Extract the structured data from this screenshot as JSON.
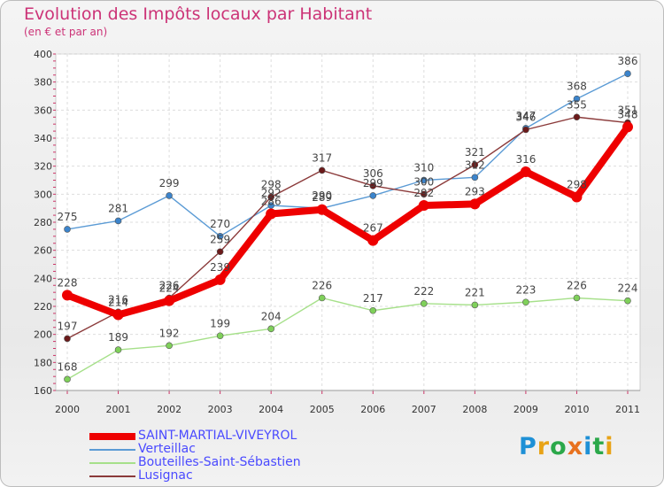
{
  "header": {
    "title": "Evolution des Impôts locaux par Habitant",
    "subtitle": "(en € et par an)"
  },
  "logo": {
    "letters": [
      "P",
      "r",
      "o",
      "x",
      "i",
      "t",
      "i"
    ],
    "colors": [
      "#1e90d6",
      "#e8a317",
      "#2ba84a",
      "#e8711e",
      "#1e90d6",
      "#2ba84a",
      "#e8a317"
    ]
  },
  "chart_data": {
    "type": "line",
    "x": [
      "2000",
      "2001",
      "2002",
      "2003",
      "2004",
      "2005",
      "2006",
      "2007",
      "2008",
      "2009",
      "2010",
      "2011"
    ],
    "ylim": [
      160,
      400
    ],
    "yticks": [
      "160",
      "180",
      "200",
      "220",
      "240",
      "260",
      "280",
      "300",
      "320",
      "340",
      "360",
      "380",
      "400"
    ],
    "grid": true,
    "legend_placement": "bottom-left",
    "series": [
      {
        "name": "Verteillac",
        "color": "#5b9bd5",
        "marker": "#3b84cc",
        "values": [
          275,
          281,
          299,
          270,
          292,
          290,
          299,
          310,
          312,
          347,
          368,
          386
        ],
        "labels": [
          "275",
          "281",
          "299",
          "270",
          "292",
          "290",
          "299",
          "310",
          "312",
          "347",
          "368",
          "386"
        ]
      },
      {
        "name": "Bouteilles-Saint-Sébastien",
        "color": "#a6e08a",
        "marker": "#7fd05a",
        "values": [
          168,
          189,
          192,
          199,
          204,
          226,
          217,
          222,
          221,
          223,
          226,
          224
        ],
        "labels": [
          "168",
          "189",
          "192",
          "199",
          "204",
          "226",
          "217",
          "222",
          "221",
          "223",
          "226",
          "224"
        ]
      },
      {
        "name": "Lusignac",
        "color": "#8b3a3a",
        "marker": "#6b1a1a",
        "values": [
          197,
          216,
          226,
          259,
          298,
          317,
          306,
          300,
          321,
          346,
          355,
          351
        ],
        "labels": [
          "197",
          "216",
          "226",
          "259",
          "298",
          "317",
          "306",
          "300",
          "321",
          "346",
          "355",
          "351"
        ]
      },
      {
        "name": "SAINT-MARTIAL-VIVEYROL",
        "color": "#ee0000",
        "marker": "#ee0000",
        "values": [
          228,
          214,
          224,
          239,
          286,
          289,
          267,
          292,
          293,
          316,
          298,
          348
        ],
        "labels": [
          "228",
          "214",
          "224",
          "239",
          "286",
          "289",
          "267",
          "292",
          "293",
          "316",
          "298",
          "348"
        ]
      }
    ],
    "legend": [
      {
        "name": "SAINT-MARTIAL-VIVEYROL",
        "color": "#ee0000"
      },
      {
        "name": "Verteillac",
        "color": "#5b9bd5"
      },
      {
        "name": "Bouteilles-Saint-Sébastien",
        "color": "#a6e08a"
      },
      {
        "name": "Lusignac",
        "color": "#8b3a3a"
      }
    ]
  }
}
